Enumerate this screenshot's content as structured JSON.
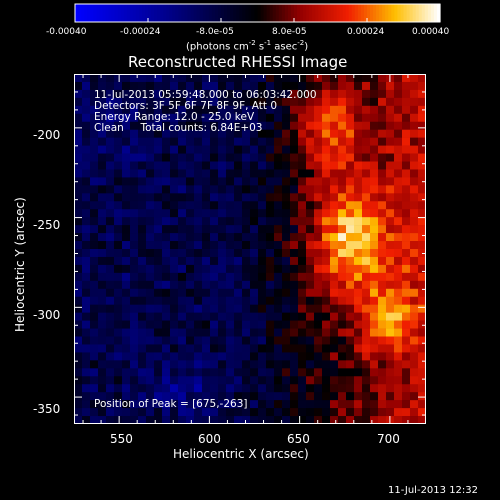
{
  "chart_data": {
    "type": "heatmap",
    "title": "Reconstructed RHESSI Image",
    "xlabel": "Heliocentric X (arcsec)",
    "ylabel": "Heliocentric Y (arcsec)",
    "xlim": [
      525,
      720
    ],
    "ylim": [
      -365,
      -170
    ],
    "x_ticks": [
      "550",
      "600",
      "650",
      "700"
    ],
    "y_ticks": [
      "-200",
      "-250",
      "-300",
      "-350"
    ],
    "colorbar": {
      "ticks": [
        "-0.00040",
        "-0.00024",
        "-8.0e-05",
        "8.0e-05",
        "0.00024",
        "0.00040"
      ],
      "unit_label": "(photons cm",
      "unit_sup1": "-2",
      "unit_mid": " s",
      "unit_sup2": "-1",
      "unit_end": " asec",
      "unit_sup3": "-2",
      "unit_close": ")",
      "range": [
        -0.0004,
        0.0004
      ]
    },
    "annotations": [
      "11-Jul-2013 05:59:48.000 to 06:03:42.000",
      "Detectors: 3F 5F 6F 7F 8F 9F, Att 0",
      "Energy Range: 12.0 - 25.0 keV",
      "Clean     Total counts: 6.84E+03"
    ],
    "peak_text": "Position of Peak = [675,-263]",
    "peak": [
      675,
      -263
    ],
    "grid": false,
    "colormap": "blue-purple-red-yellow-white"
  },
  "timestamp": "11-Jul-2013 12:32"
}
